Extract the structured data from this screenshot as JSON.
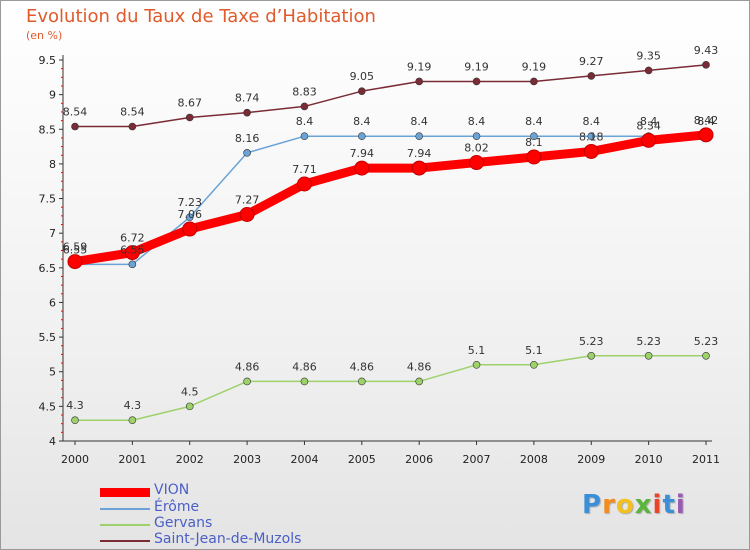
{
  "chart_data": {
    "type": "line",
    "title": "Evolution du Taux de Taxe d’Habitation",
    "ylabel": "(en %)",
    "x": [
      "2000",
      "2001",
      "2002",
      "2003",
      "2004",
      "2005",
      "2006",
      "2007",
      "2008",
      "2009",
      "2010",
      "2011"
    ],
    "ylim": [
      4,
      9.5
    ],
    "yticks": [
      "4",
      "4.5",
      "5",
      "5.5",
      "6",
      "6.5",
      "7",
      "7.5",
      "8",
      "8.5",
      "9",
      "9.5"
    ],
    "grid": false,
    "legend": "bottom-left",
    "series": [
      {
        "name": "VION",
        "color": "#ff0000",
        "values": [
          6.59,
          6.72,
          7.06,
          7.27,
          7.71,
          7.94,
          7.94,
          8.02,
          8.1,
          8.18,
          8.34,
          8.42
        ],
        "labels": [
          "6.59",
          "6.72",
          "7.06",
          "7.27",
          "7.71",
          "7.94",
          "7.94",
          "8.02",
          "8.1",
          "8.18",
          "8.34",
          "8.42"
        ]
      },
      {
        "name": "Érôme",
        "color": "#6ba3d6",
        "values": [
          6.55,
          6.55,
          7.23,
          8.16,
          8.4,
          8.4,
          8.4,
          8.4,
          8.4,
          8.4,
          8.4,
          8.4
        ],
        "labels": [
          "6.55",
          "6.55",
          "7.23",
          "8.16",
          "8.4",
          "8.4",
          "8.4",
          "8.4",
          "8.4",
          "8.4",
          "8.4",
          "8.4"
        ]
      },
      {
        "name": "Gervans",
        "color": "#9dd26b",
        "values": [
          4.3,
          4.3,
          4.5,
          4.86,
          4.86,
          4.86,
          4.86,
          5.1,
          5.1,
          5.23,
          5.23,
          5.23
        ],
        "labels": [
          "4.3",
          "4.3",
          "4.5",
          "4.86",
          "4.86",
          "4.86",
          "4.86",
          "5.1",
          "5.1",
          "5.23",
          "5.23",
          "5.23"
        ]
      },
      {
        "name": "Saint-Jean-de-Muzols",
        "color": "#7b2b35",
        "values": [
          8.54,
          8.54,
          8.67,
          8.74,
          8.83,
          9.05,
          9.19,
          9.19,
          9.19,
          9.27,
          9.35,
          9.43
        ],
        "labels": [
          "8.54",
          "8.54",
          "8.67",
          "8.74",
          "8.83",
          "9.05",
          "9.19",
          "9.19",
          "9.19",
          "9.27",
          "9.35",
          "9.43"
        ]
      }
    ]
  },
  "logo": {
    "letters": [
      "P",
      "r",
      "o",
      "x",
      "i",
      "t",
      "i"
    ],
    "colors": [
      "#3a8fd8",
      "#f28c1e",
      "#f2c11e",
      "#5ab53c",
      "#e8452c",
      "#3a8fd8",
      "#9b59b6"
    ]
  }
}
